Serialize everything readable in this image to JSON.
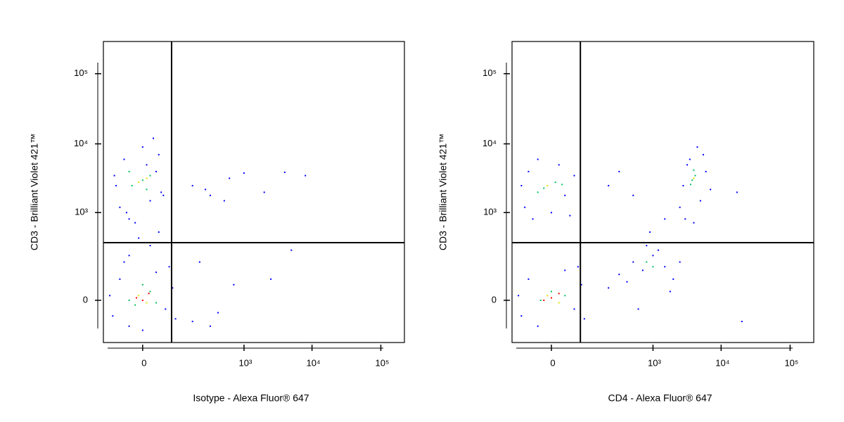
{
  "chart_data": [
    {
      "type": "scatter",
      "x_label": "Isotype - Alexa Fluor® 647",
      "y_label": "CD3 - Brilliant Violet 421™",
      "xscale": "biexponential",
      "xlinthresh": 35,
      "yscale": "biexponential",
      "ylinthresh": 60,
      "xlim": [
        -95,
        220000
      ],
      "ylim": [
        -179,
        287000
      ],
      "xticks": [
        0,
        {
          "value": 1000,
          "label": "10³"
        },
        {
          "value": 10000,
          "label": "10⁴"
        },
        {
          "value": 100000,
          "label": "10⁵"
        }
      ],
      "yticks": [
        0,
        {
          "value": 1000,
          "label": "10³"
        },
        {
          "value": 10000,
          "label": "10⁴"
        },
        {
          "value": 100000,
          "label": "10⁵"
        }
      ],
      "gates": {
        "x": 57,
        "y": 336
      },
      "series": [
        {
          "color": "#0000ff",
          "x": [
            -40,
            -20,
            10,
            30,
            -50,
            20,
            -30,
            0,
            15,
            -10,
            35,
            -55,
            25,
            -25,
            5,
            -5,
            10,
            -20,
            25,
            -60,
            -40,
            40,
            60,
            -20,
            20,
            70,
            -70,
            50,
            -30,
            0,
            150,
            300,
            600,
            1000,
            2000,
            4000,
            8000,
            250,
            500,
            200,
            400,
            700,
            2500,
            5000,
            150,
            300
          ],
          "y": [
            1200,
            800,
            1500,
            2000,
            2500,
            4000,
            6000,
            9000,
            12000,
            700,
            1800,
            3500,
            7000,
            1000,
            5000,
            400,
            300,
            200,
            500,
            -40,
            60,
            -20,
            30,
            -80,
            90,
            -50,
            10,
            120,
            150,
            -100,
            2500,
            1800,
            3200,
            3800,
            2000,
            3900,
            3500,
            2200,
            1500,
            150,
            -30,
            40,
            60,
            250,
            -60,
            -80
          ]
        },
        {
          "color": "#00c060",
          "x": [
            -15,
            0,
            10,
            -20,
            5,
            -10,
            10,
            0,
            -20,
            20
          ],
          "y": [
            2500,
            3000,
            3500,
            4000,
            2200,
            -10,
            20,
            40,
            0,
            -5
          ]
        },
        {
          "color": "#e0e000",
          "x": [
            -5,
            5,
            -5,
            5
          ],
          "y": [
            2800,
            3200,
            10,
            -5
          ]
        },
        {
          "color": "#ff0000",
          "x": [
            0,
            -8,
            8
          ],
          "y": [
            0,
            5,
            15
          ]
        }
      ]
    },
    {
      "type": "scatter",
      "x_label": "CD4 - Alexa Fluor® 647",
      "y_label": "CD3 - Brilliant Violet 421™",
      "xscale": "biexponential",
      "xlinthresh": 35,
      "yscale": "biexponential",
      "ylinthresh": 60,
      "xlim": [
        -95,
        220000
      ],
      "ylim": [
        -179,
        287000
      ],
      "xticks": [
        0,
        {
          "value": 1000,
          "label": "10³"
        },
        {
          "value": 10000,
          "label": "10⁴"
        },
        {
          "value": 100000,
          "label": "10⁵"
        }
      ],
      "yticks": [
        0,
        {
          "value": 1000,
          "label": "10³"
        },
        {
          "value": 10000,
          "label": "10⁴"
        },
        {
          "value": 100000,
          "label": "10⁵"
        }
      ],
      "gates": {
        "x": 57,
        "y": 336
      },
      "series": [
        {
          "color": "#0000ff",
          "x": [
            -50,
            -30,
            20,
            40,
            -60,
            10,
            -20,
            30,
            -40,
            0,
            2500,
            3000,
            5000,
            6000,
            3500,
            4500,
            2800,
            7000,
            4000,
            5500,
            3200,
            -60,
            -40,
            40,
            60,
            -20,
            20,
            70,
            -70,
            50,
            200,
            300,
            500,
            700,
            1000,
            1500,
            2000,
            800,
            400,
            1200,
            2500,
            600,
            1800,
            20000,
            900,
            1500,
            200,
            500,
            300,
            17000
          ],
          "y": [
            1200,
            800,
            1800,
            3500,
            2500,
            5000,
            6000,
            900,
            4000,
            1000,
            1200,
            800,
            1500,
            4000,
            6000,
            9000,
            2500,
            2200,
            700,
            7000,
            5000,
            -40,
            60,
            -20,
            40,
            -80,
            100,
            -50,
            10,
            120,
            30,
            80,
            150,
            100,
            200,
            120,
            60,
            300,
            50,
            250,
            150,
            -20,
            20,
            -60,
            500,
            800,
            2500,
            1800,
            4000,
            2000
          ]
        },
        {
          "color": "#00c060",
          "x": [
            -10,
            5,
            -20,
            15,
            3800,
            4200,
            3600,
            4000,
            0,
            -15,
            20,
            800,
            1000
          ],
          "y": [
            2300,
            2800,
            2000,
            2600,
            3000,
            3500,
            2600,
            4200,
            20,
            0,
            10,
            150,
            120
          ]
        },
        {
          "color": "#e0e000",
          "x": [
            -5,
            4000,
            -5,
            10
          ],
          "y": [
            2500,
            3200,
            10,
            -5
          ]
        },
        {
          "color": "#ff0000",
          "x": [
            0,
            -10,
            10
          ],
          "y": [
            5,
            0,
            15
          ]
        }
      ]
    }
  ]
}
